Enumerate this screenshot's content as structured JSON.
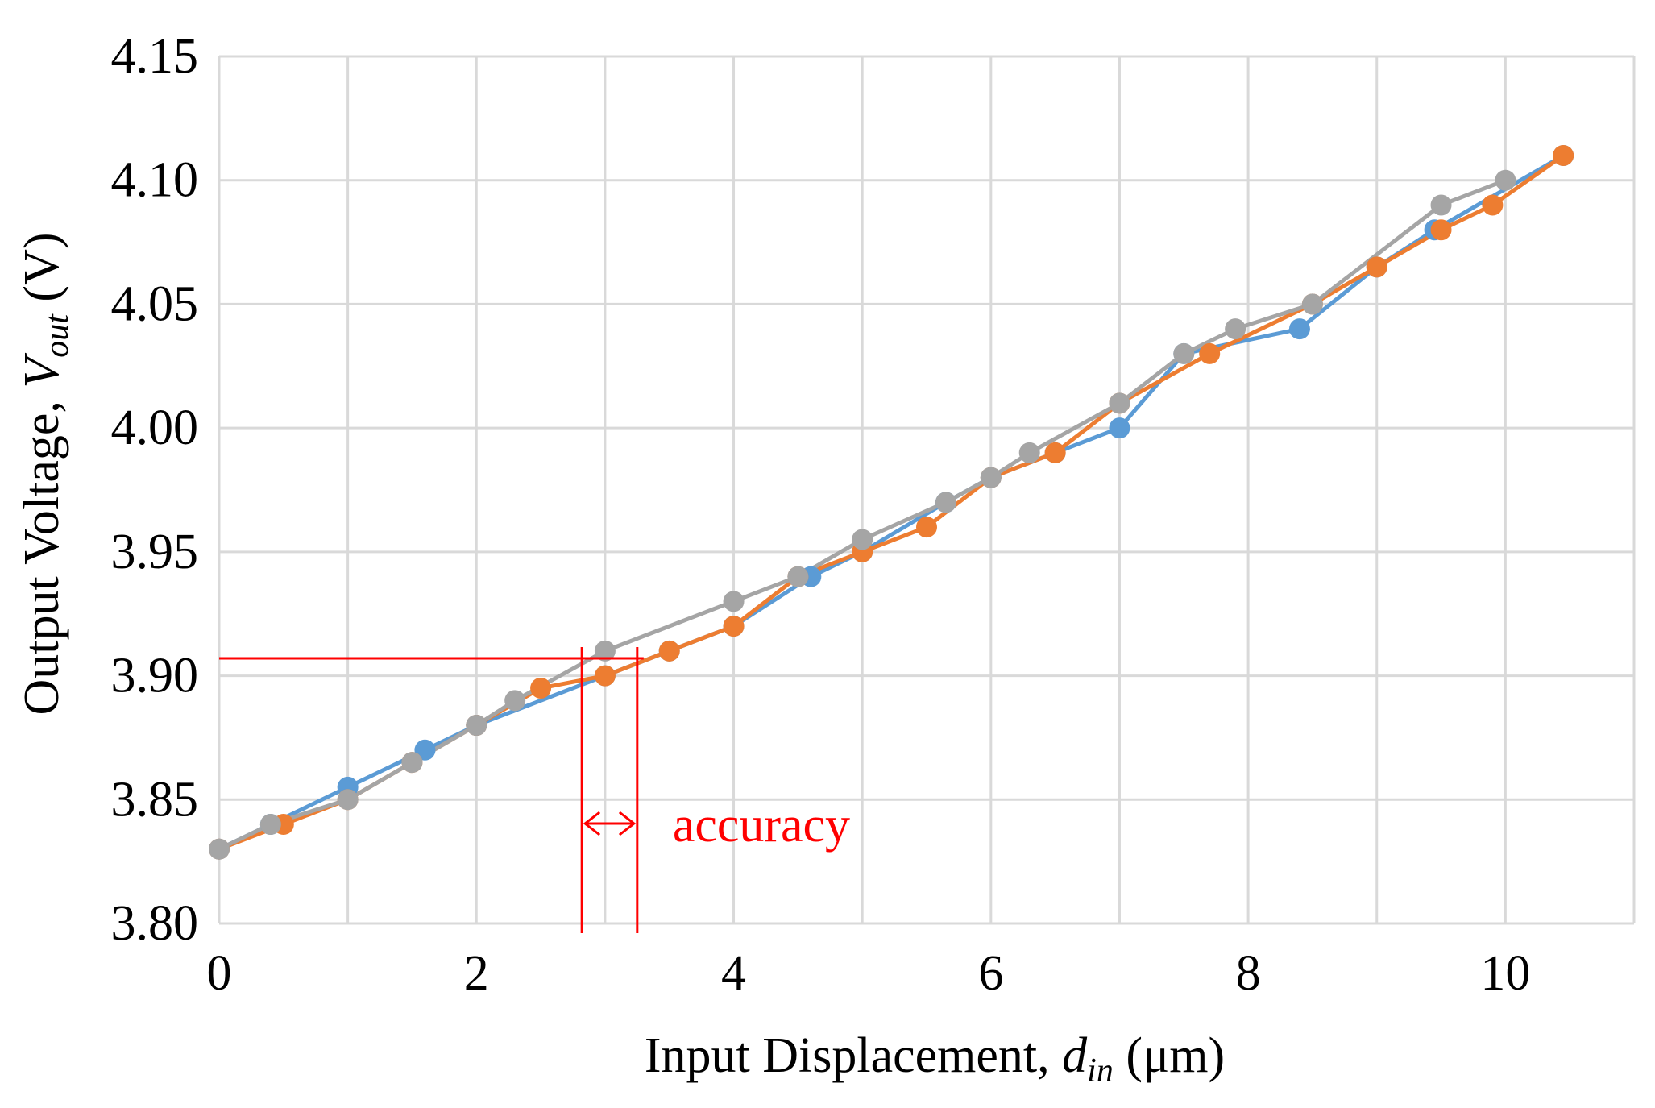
{
  "chart_data": {
    "type": "line",
    "title": "",
    "xlabel": {
      "prefix": "Input Displacement, ",
      "symbol": "d",
      "subscript": "in",
      "suffix": " (μm)"
    },
    "ylabel": {
      "prefix": "Output Voltage, ",
      "symbol": "V",
      "subscript": "out",
      "suffix": " (V)"
    },
    "xlim": [
      0,
      11
    ],
    "ylim": [
      3.8,
      4.15
    ],
    "x_ticks": [
      0,
      2,
      4,
      6,
      8,
      10
    ],
    "x_tick_labels": [
      "0",
      "2",
      "4",
      "6",
      "8",
      "10"
    ],
    "x_grid": [
      0,
      1,
      2,
      3,
      4,
      5,
      6,
      7,
      8,
      9,
      10,
      11
    ],
    "y_ticks": [
      3.8,
      3.85,
      3.9,
      3.95,
      4.0,
      4.05,
      4.1,
      4.15
    ],
    "y_tick_labels": [
      "3.80",
      "3.85",
      "3.90",
      "3.95",
      "4.00",
      "4.05",
      "4.10",
      "4.15"
    ],
    "grid": true,
    "legend": false,
    "series": [
      {
        "color": "#5b9bd5",
        "points": [
          [
            0,
            3.83
          ],
          [
            0.4,
            3.84
          ],
          [
            1.0,
            3.855
          ],
          [
            1.6,
            3.87
          ],
          [
            2.0,
            3.88
          ],
          [
            3.0,
            3.9
          ],
          [
            3.5,
            3.91
          ],
          [
            4.0,
            3.92
          ],
          [
            4.6,
            3.94
          ],
          [
            5.0,
            3.95
          ],
          [
            5.65,
            3.97
          ],
          [
            6.0,
            3.98
          ],
          [
            6.5,
            3.99
          ],
          [
            7.0,
            4.0
          ],
          [
            7.5,
            4.03
          ],
          [
            8.4,
            4.04
          ],
          [
            9.0,
            4.065
          ],
          [
            9.45,
            4.08
          ],
          [
            10.45,
            4.11
          ]
        ]
      },
      {
        "color": "#ed7d31",
        "points": [
          [
            0,
            3.83
          ],
          [
            0.5,
            3.84
          ],
          [
            1.0,
            3.85
          ],
          [
            1.5,
            3.865
          ],
          [
            2.0,
            3.88
          ],
          [
            2.5,
            3.895
          ],
          [
            3.0,
            3.9
          ],
          [
            3.5,
            3.91
          ],
          [
            4.0,
            3.92
          ],
          [
            4.5,
            3.94
          ],
          [
            5.0,
            3.95
          ],
          [
            5.5,
            3.96
          ],
          [
            6.0,
            3.98
          ],
          [
            6.5,
            3.99
          ],
          [
            7.0,
            4.01
          ],
          [
            7.7,
            4.03
          ],
          [
            8.5,
            4.05
          ],
          [
            9.0,
            4.065
          ],
          [
            9.5,
            4.08
          ],
          [
            9.9,
            4.09
          ],
          [
            10.45,
            4.11
          ]
        ]
      },
      {
        "color": "#a5a5a5",
        "points": [
          [
            0,
            3.83
          ],
          [
            0.4,
            3.84
          ],
          [
            1.0,
            3.85
          ],
          [
            1.5,
            3.865
          ],
          [
            2.0,
            3.88
          ],
          [
            2.3,
            3.89
          ],
          [
            3.0,
            3.91
          ],
          [
            4.0,
            3.93
          ],
          [
            4.5,
            3.94
          ],
          [
            5.0,
            3.955
          ],
          [
            5.65,
            3.97
          ],
          [
            6.0,
            3.98
          ],
          [
            6.3,
            3.99
          ],
          [
            7.0,
            4.01
          ],
          [
            7.5,
            4.03
          ],
          [
            7.9,
            4.04
          ],
          [
            8.5,
            4.05
          ],
          [
            9.5,
            4.09
          ],
          [
            10.0,
            4.1
          ]
        ]
      }
    ],
    "annotation": {
      "label": "accuracy",
      "color": "#ff0000",
      "reference_y": 3.907,
      "left_x": 2.82,
      "right_x": 3.25
    }
  }
}
